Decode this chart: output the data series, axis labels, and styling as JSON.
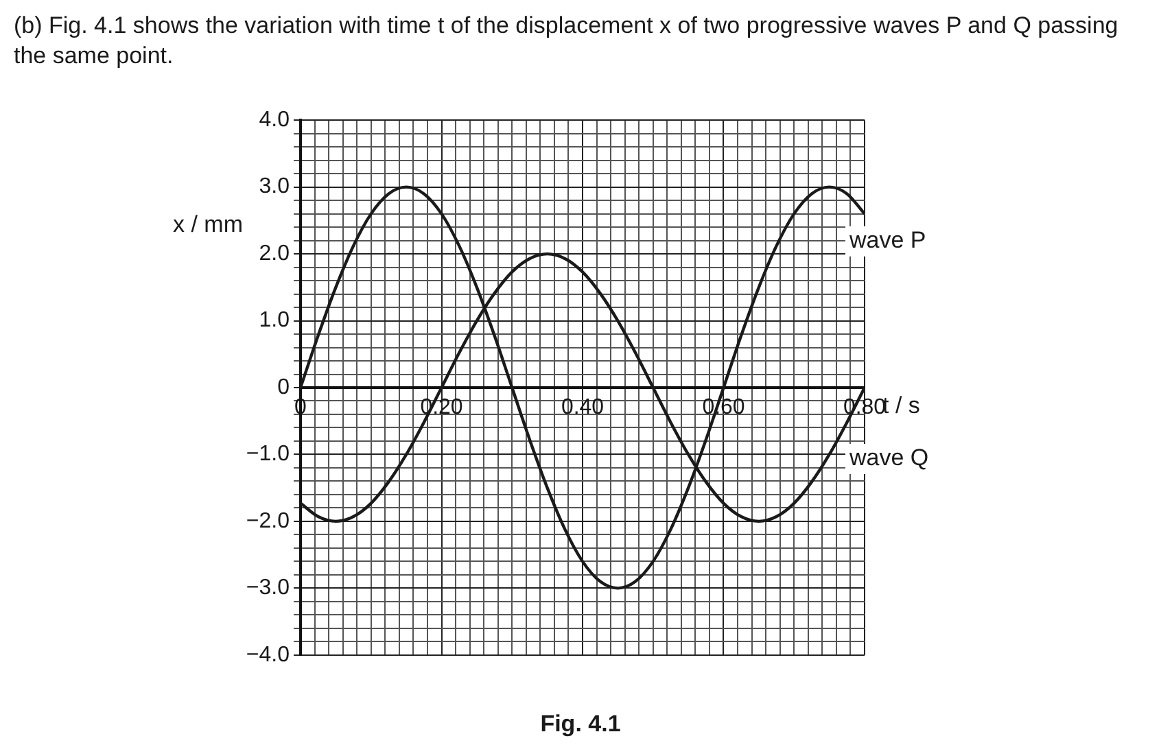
{
  "chart_data": {
    "type": "line",
    "title": "(b)  Fig. 4.1 shows the variation with time t of the displacement x of two progressive waves P and Q passing the same point.",
    "xlabel": "t / s",
    "ylabel": "x / mm",
    "annotations": [
      "Fig. 4.1"
    ],
    "x": [
      0,
      0.025,
      0.05,
      0.075,
      0.1,
      0.125,
      0.15,
      0.175,
      0.2,
      0.225,
      0.25,
      0.275,
      0.3,
      0.325,
      0.35,
      0.375,
      0.4,
      0.425,
      0.45,
      0.475,
      0.5,
      0.525,
      0.55,
      0.575,
      0.6,
      0.625,
      0.65,
      0.675,
      0.7,
      0.725,
      0.75,
      0.775,
      0.8
    ],
    "series": [
      {
        "name": "wave P",
        "color": "#1a1a1a",
        "values": [
          0,
          0.78,
          1.5,
          2.12,
          2.6,
          2.9,
          3,
          2.9,
          2.6,
          2.12,
          1.5,
          0.78,
          0,
          -0.78,
          -1.5,
          -2.12,
          -2.6,
          -2.9,
          -3,
          -2.9,
          -2.6,
          -2.12,
          -1.5,
          -0.78,
          0,
          0.78,
          1.5,
          2.12,
          2.6,
          2.9,
          3,
          2.9,
          2.6
        ]
      },
      {
        "name": "wave Q",
        "color": "#1a1a1a",
        "values": [
          -1.73,
          -1.93,
          -2,
          -1.93,
          -1.73,
          -1.41,
          -1,
          -0.52,
          0,
          0.52,
          1,
          1.41,
          1.73,
          1.93,
          2,
          1.93,
          1.73,
          1.41,
          1,
          0.52,
          0,
          -0.52,
          -1,
          -1.41,
          -1.73,
          -1.93,
          -2,
          -1.93,
          -1.73,
          -1.41,
          -1,
          -0.52,
          0
        ]
      }
    ],
    "xlim": [
      0,
      0.8
    ],
    "ylim": [
      -4,
      4
    ],
    "xticks": [
      {
        "value": 0,
        "label": "0"
      },
      {
        "value": 0.02,
        "label": null
      },
      {
        "value": 0.04,
        "label": null
      },
      {
        "value": 0.06,
        "label": null
      },
      {
        "value": 0.08,
        "label": null
      },
      {
        "value": 0.1,
        "label": null
      },
      {
        "value": 0.12,
        "label": null
      },
      {
        "value": 0.14,
        "label": null
      },
      {
        "value": 0.16,
        "label": null
      },
      {
        "value": 0.18,
        "label": null
      },
      {
        "value": 0.2,
        "label": "0.20"
      },
      {
        "value": 0.22,
        "label": null
      },
      {
        "value": 0.24,
        "label": null
      },
      {
        "value": 0.26,
        "label": null
      },
      {
        "value": 0.28,
        "label": null
      },
      {
        "value": 0.3,
        "label": null
      },
      {
        "value": 0.32,
        "label": null
      },
      {
        "value": 0.34,
        "label": null
      },
      {
        "value": 0.36,
        "label": null
      },
      {
        "value": 0.38,
        "label": null
      },
      {
        "value": 0.4,
        "label": "0.40"
      },
      {
        "value": 0.42,
        "label": null
      },
      {
        "value": 0.44,
        "label": null
      },
      {
        "value": 0.46,
        "label": null
      },
      {
        "value": 0.48,
        "label": null
      },
      {
        "value": 0.5,
        "label": null
      },
      {
        "value": 0.52,
        "label": null
      },
      {
        "value": 0.54,
        "label": null
      },
      {
        "value": 0.56,
        "label": null
      },
      {
        "value": 0.58,
        "label": null
      },
      {
        "value": 0.6,
        "label": "0.60"
      },
      {
        "value": 0.62,
        "label": null
      },
      {
        "value": 0.64,
        "label": null
      },
      {
        "value": 0.66,
        "label": null
      },
      {
        "value": 0.68,
        "label": null
      },
      {
        "value": 0.7,
        "label": null
      },
      {
        "value": 0.72,
        "label": null
      },
      {
        "value": 0.74,
        "label": null
      },
      {
        "value": 0.76,
        "label": null
      },
      {
        "value": 0.78,
        "label": null
      },
      {
        "value": 0.8,
        "label": "0.80"
      }
    ],
    "yticks": [
      {
        "value": -4,
        "label": "−4.0"
      },
      {
        "value": -3.8,
        "label": null
      },
      {
        "value": -3.6,
        "label": null
      },
      {
        "value": -3.4,
        "label": null
      },
      {
        "value": -3.2,
        "label": null
      },
      {
        "value": -3,
        "label": "−3.0"
      },
      {
        "value": -2.8,
        "label": null
      },
      {
        "value": -2.6,
        "label": null
      },
      {
        "value": -2.4,
        "label": null
      },
      {
        "value": -2.2,
        "label": null
      },
      {
        "value": -2,
        "label": "−2.0"
      },
      {
        "value": -1.8,
        "label": null
      },
      {
        "value": -1.6,
        "label": null
      },
      {
        "value": -1.4,
        "label": null
      },
      {
        "value": -1.2,
        "label": null
      },
      {
        "value": -1,
        "label": "−1.0"
      },
      {
        "value": -0.8,
        "label": null
      },
      {
        "value": -0.6,
        "label": null
      },
      {
        "value": -0.4,
        "label": null
      },
      {
        "value": -0.2,
        "label": null
      },
      {
        "value": 0,
        "label": "0"
      },
      {
        "value": 0.2,
        "label": null
      },
      {
        "value": 0.4,
        "label": null
      },
      {
        "value": 0.6,
        "label": null
      },
      {
        "value": 0.8,
        "label": null
      },
      {
        "value": 1,
        "label": "1.0"
      },
      {
        "value": 1.2,
        "label": null
      },
      {
        "value": 1.4,
        "label": null
      },
      {
        "value": 1.6,
        "label": null
      },
      {
        "value": 1.8,
        "label": null
      },
      {
        "value": 2,
        "label": "2.0"
      },
      {
        "value": 2.2,
        "label": null
      },
      {
        "value": 2.4,
        "label": null
      },
      {
        "value": 2.6,
        "label": null
      },
      {
        "value": 2.8,
        "label": null
      },
      {
        "value": 3,
        "label": "3.0"
      },
      {
        "value": 3.2,
        "label": null
      },
      {
        "value": 3.4,
        "label": null
      },
      {
        "value": 3.6,
        "label": null
      },
      {
        "value": 3.8,
        "label": null
      },
      {
        "value": 4,
        "label": "4.0"
      }
    ],
    "grid": true,
    "legend": false,
    "marker": "none",
    "line_style": "solid"
  }
}
